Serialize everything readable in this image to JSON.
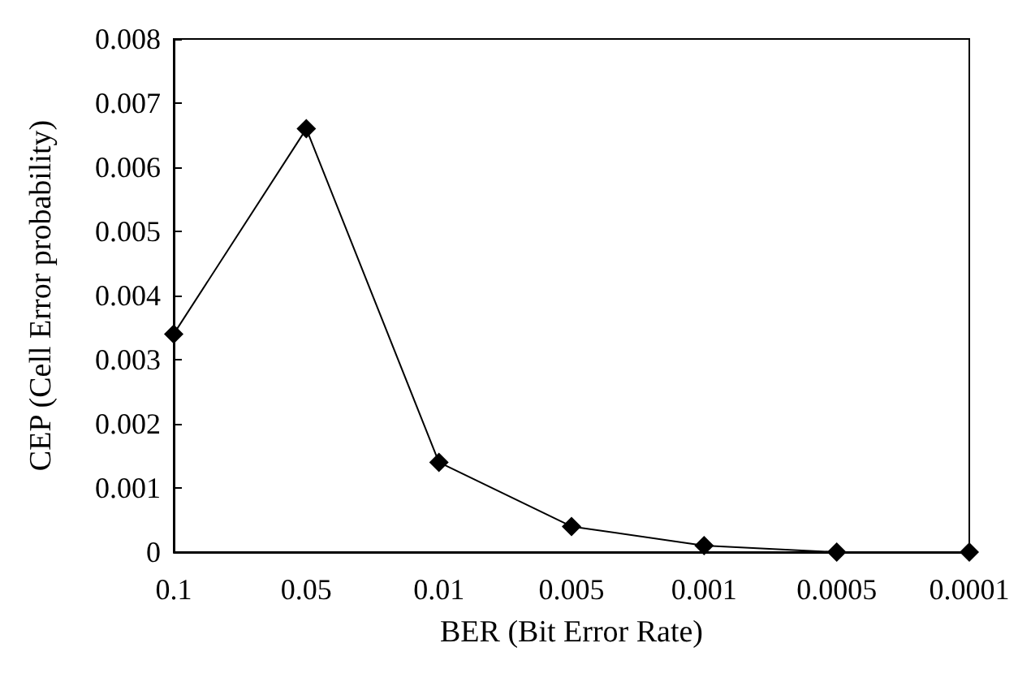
{
  "chart_data": {
    "type": "line",
    "xlabel": "BER (Bit Error Rate)",
    "ylabel": "CEP (Cell Error probability)",
    "categories": [
      "0.1",
      "0.05",
      "0.01",
      "0.005",
      "0.001",
      "0.0005",
      "0.0001"
    ],
    "series": [
      {
        "color": "#000000",
        "values": [
          0.0034,
          0.0066,
          0.0014,
          0.0004,
          0.0001,
          0,
          0
        ]
      }
    ],
    "ylim": [
      0,
      0.008
    ],
    "yticks": [
      0,
      0.001,
      0.002,
      0.003,
      0.004,
      0.005,
      0.006,
      0.007,
      0.008
    ],
    "grid": false,
    "marker": "diamond",
    "line_style": "solid"
  }
}
